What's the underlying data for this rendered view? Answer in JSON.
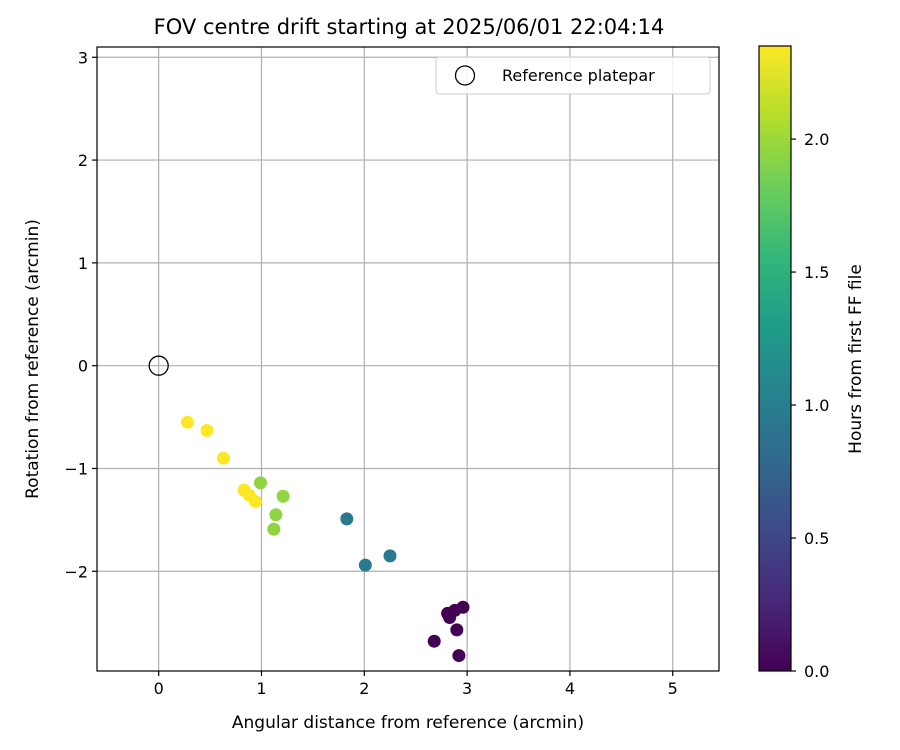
{
  "chart_data": {
    "type": "scatter",
    "title": "FOV centre drift starting at 2025/06/01 22:04:14",
    "xlabel": "Angular distance from reference (arcmin)",
    "ylabel": "Rotation from reference (arcmin)",
    "xlim": [
      -0.6,
      5.45
    ],
    "ylim": [
      -2.97,
      3.1
    ],
    "xticks": [
      0,
      1,
      2,
      3,
      4,
      5
    ],
    "xtick_labels": [
      "0",
      "1",
      "2",
      "3",
      "4",
      "5"
    ],
    "yticks": [
      -2,
      -1,
      0,
      1,
      2,
      3
    ],
    "ytick_labels": [
      "−2",
      "−1",
      "0",
      "1",
      "2",
      "3"
    ],
    "grid": true,
    "legend": {
      "position": "top-right",
      "entries": [
        {
          "label": "Reference platepar",
          "marker": "open-circle",
          "color": "#000000"
        }
      ]
    },
    "reference_point": {
      "x": 0,
      "y": 0
    },
    "colorbar": {
      "label": "Hours from first FF file",
      "colormap": "viridis",
      "range": [
        0.0,
        2.35
      ],
      "ticks": [
        0.0,
        0.5,
        1.0,
        1.5,
        2.0
      ],
      "tick_labels": [
        "0.0",
        "0.5",
        "1.0",
        "1.5",
        "2.0"
      ],
      "stops": [
        "#440154",
        "#482878",
        "#3e4989",
        "#31688e",
        "#26828e",
        "#1f9e89",
        "#35b779",
        "#6ece58",
        "#b5de2b",
        "#fde725"
      ]
    },
    "points": [
      {
        "x": 2.68,
        "y": -2.68,
        "hours": 0.0
      },
      {
        "x": 2.81,
        "y": -2.41,
        "hours": 0.0
      },
      {
        "x": 2.83,
        "y": -2.45,
        "hours": 0.0
      },
      {
        "x": 2.88,
        "y": -2.38,
        "hours": 0.0
      },
      {
        "x": 2.96,
        "y": -2.35,
        "hours": 0.0
      },
      {
        "x": 2.9,
        "y": -2.57,
        "hours": 0.0
      },
      {
        "x": 2.92,
        "y": -2.82,
        "hours": 0.0
      },
      {
        "x": 1.83,
        "y": -1.49,
        "hours": 0.95
      },
      {
        "x": 2.25,
        "y": -1.85,
        "hours": 0.95
      },
      {
        "x": 2.01,
        "y": -1.94,
        "hours": 0.95
      },
      {
        "x": 0.99,
        "y": -1.14,
        "hours": 1.95
      },
      {
        "x": 1.21,
        "y": -1.27,
        "hours": 1.95
      },
      {
        "x": 1.14,
        "y": -1.45,
        "hours": 1.95
      },
      {
        "x": 1.12,
        "y": -1.59,
        "hours": 1.95
      },
      {
        "x": 0.28,
        "y": -0.55,
        "hours": 2.35
      },
      {
        "x": 0.47,
        "y": -0.63,
        "hours": 2.35
      },
      {
        "x": 0.63,
        "y": -0.9,
        "hours": 2.35
      },
      {
        "x": 0.83,
        "y": -1.21,
        "hours": 2.35
      },
      {
        "x": 0.88,
        "y": -1.26,
        "hours": 2.35
      },
      {
        "x": 0.94,
        "y": -1.32,
        "hours": 2.35
      }
    ]
  }
}
